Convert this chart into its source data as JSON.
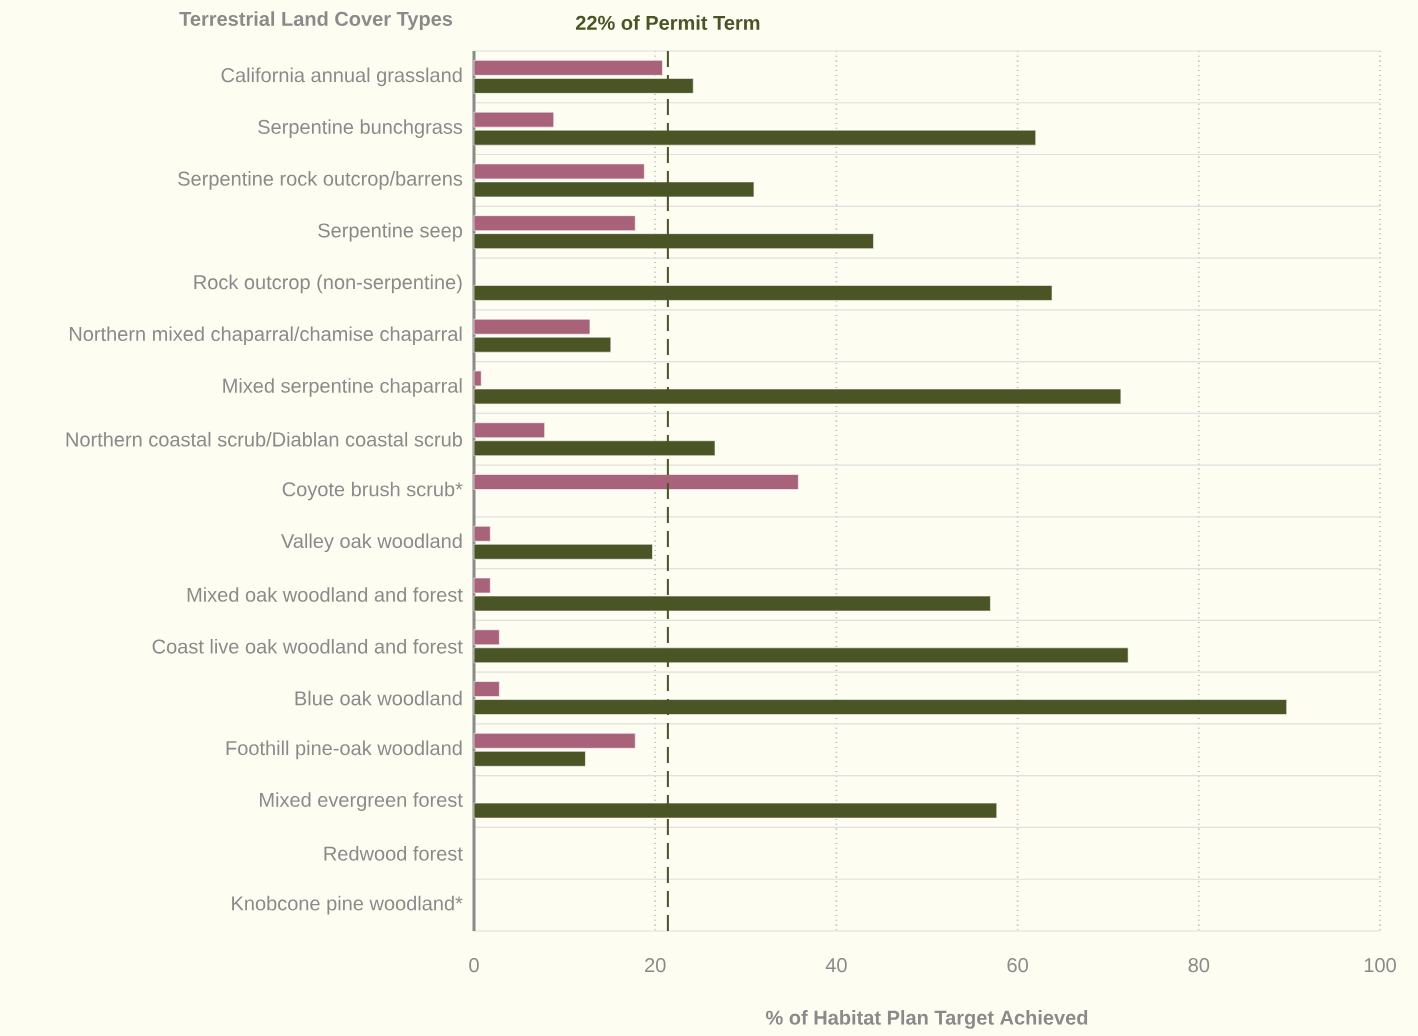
{
  "chart_data": {
    "type": "bar",
    "orientation": "horizontal",
    "ylabel": "Terrestrial Land Cover Types",
    "xlabel": "% of Habitat Plan Target Achieved",
    "categories": [
      "California annual grassland",
      "Serpentine bunchgrass",
      "Serpentine rock outcrop/barrens",
      "Serpentine seep",
      "Rock outcrop (non-serpentine)",
      "Northern mixed chaparral/chamise chaparral",
      "Mixed serpentine chaparral",
      "Northern coastal scrub/Diablan coastal scrub",
      "Coyote brush scrub*",
      "Valley oak woodland",
      "Mixed oak woodland and forest",
      "Coast live oak woodland and forest",
      "Blue oak woodland",
      "Foothill pine-oak woodland",
      "Mixed evergreen forest",
      "Redwood forest",
      "Knobcone pine woodland*"
    ],
    "series": [
      {
        "color": "#a8627a",
        "values": [
          20.8,
          8.8,
          18.8,
          17.8,
          null,
          12.8,
          0.8,
          7.8,
          35.8,
          1.8,
          1.8,
          2.8,
          2.8,
          17.8,
          null,
          null,
          null
        ]
      },
      {
        "color": "#4a5424",
        "values": [
          24.2,
          62.0,
          30.9,
          44.1,
          63.8,
          15.1,
          71.4,
          26.6,
          null,
          19.7,
          57.0,
          72.2,
          89.7,
          12.3,
          57.7,
          null,
          null
        ]
      }
    ],
    "xlim": [
      0,
      100
    ],
    "xticks": [
      0,
      20,
      40,
      60,
      80,
      100
    ],
    "grid": true,
    "ref_lines": [
      {
        "axis": "x",
        "value": 21.4,
        "label": "22% of Permit Term",
        "color": "#4a5424",
        "line_style": "dashed"
      }
    ]
  }
}
